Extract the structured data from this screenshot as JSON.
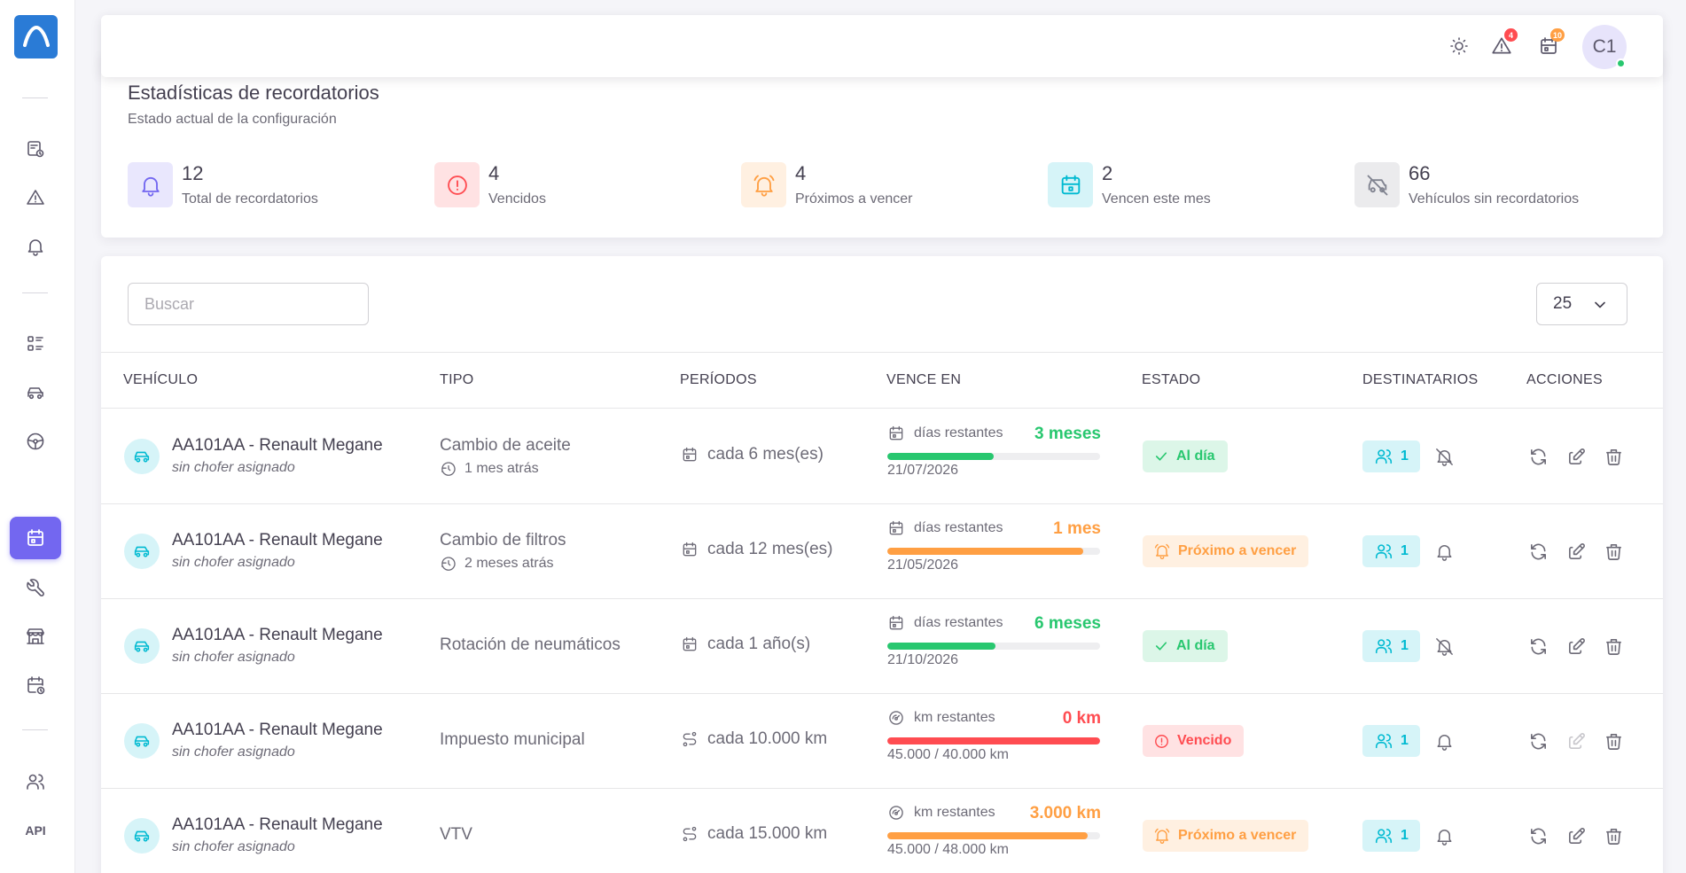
{
  "sidebar": {
    "logo": "app-logo",
    "items": [
      {
        "name": "sidebar-item-vehicle-docs",
        "icon": "file-clock-icon"
      },
      {
        "name": "sidebar-item-alerts",
        "icon": "warning-icon"
      },
      {
        "name": "sidebar-item-notifications",
        "icon": "bell-icon"
      },
      {
        "name": "sidebar-item-list",
        "icon": "list-details-icon"
      },
      {
        "name": "sidebar-item-vehicles",
        "icon": "car-icon"
      },
      {
        "name": "sidebar-item-drivers",
        "icon": "steering-wheel-icon"
      },
      {
        "name": "sidebar-item-reminders",
        "icon": "calendar-icon",
        "active": true
      },
      {
        "name": "sidebar-item-maintenance",
        "icon": "wrench-icon"
      },
      {
        "name": "sidebar-item-workshops",
        "icon": "building-store-icon"
      },
      {
        "name": "sidebar-item-calendar-schedule",
        "icon": "calendar-time-icon"
      },
      {
        "name": "sidebar-item-users",
        "icon": "users-icon"
      }
    ],
    "api_label": "API"
  },
  "navbar": {
    "alerts_count": "4",
    "calendar_count": "10",
    "avatar_initials": "C1",
    "colors": {
      "alerts_badge": "#ff4c51",
      "calendar_badge": "#ff9f43",
      "online": "#28c76f"
    }
  },
  "stats": {
    "title": "Estadísticas de recordatorios",
    "subtitle": "Estado actual de la configuración",
    "items": [
      {
        "value": "12",
        "label": "Total de recordatorios",
        "icon": "bell-icon",
        "color": "#7367f0"
      },
      {
        "value": "4",
        "label": "Vencidos",
        "icon": "alert-circle-icon",
        "color": "#ff4c51"
      },
      {
        "value": "4",
        "label": "Próximos a vencer",
        "icon": "bell-ringing-icon",
        "color": "#ff9f43"
      },
      {
        "value": "2",
        "label": "Vencen este mes",
        "icon": "calendar-event-icon",
        "color": "#00bad1"
      },
      {
        "value": "66",
        "label": "Vehículos sin recordatorios",
        "icon": "car-off-icon",
        "color": "#808390"
      }
    ]
  },
  "table": {
    "search_placeholder": "Buscar",
    "page_size": "25",
    "columns": [
      "VEHÍCULO",
      "TIPO",
      "PERÍODOS",
      "VENCE EN",
      "ESTADO",
      "DESTINATARIOS",
      "ACCIONES"
    ],
    "rows": [
      {
        "vehicle": "AA101AA - Renault Megane",
        "driver": "sin chofer asignado",
        "type": "Cambio de aceite",
        "type_sub": "1 mes atrás",
        "period_icon": "calendar-icon",
        "period": "cada 6 mes(es)",
        "due_icon": "calendar-icon",
        "due_label": "días restantes",
        "due_amount": "3 meses",
        "due_color": "#28c76f",
        "progress": 0.5,
        "due_detail": "21/07/2026",
        "status": "Al día",
        "status_kind": "ok",
        "recipients": "1",
        "notify": "muted",
        "edit_enabled": true
      },
      {
        "vehicle": "AA101AA - Renault Megane",
        "driver": "sin chofer asignado",
        "type": "Cambio de filtros",
        "type_sub": "2 meses atrás",
        "period_icon": "calendar-icon",
        "period": "cada 12 mes(es)",
        "due_icon": "calendar-icon",
        "due_label": "días restantes",
        "due_amount": "1 mes",
        "due_color": "#ff9f43",
        "progress": 0.92,
        "due_detail": "21/05/2026",
        "status": "Próximo a vencer",
        "status_kind": "warning",
        "recipients": "1",
        "notify": "on",
        "edit_enabled": true
      },
      {
        "vehicle": "AA101AA - Renault Megane",
        "driver": "sin chofer asignado",
        "type": "Rotación de neumáticos",
        "type_sub": "",
        "period_icon": "calendar-icon",
        "period": "cada 1 año(s)",
        "due_icon": "calendar-icon",
        "due_label": "días restantes",
        "due_amount": "6 meses",
        "due_color": "#28c76f",
        "progress": 0.51,
        "due_detail": "21/10/2026",
        "status": "Al día",
        "status_kind": "ok",
        "recipients": "1",
        "notify": "muted",
        "edit_enabled": true
      },
      {
        "vehicle": "AA101AA - Renault Megane",
        "driver": "sin chofer asignado",
        "type": "Impuesto municipal",
        "type_sub": "",
        "period_icon": "route-icon",
        "period": "cada 10.000 km",
        "due_icon": "gauge-icon",
        "due_label": "km restantes",
        "due_amount": "0 km",
        "due_color": "#ff4c51",
        "progress": 1.0,
        "due_detail": "45.000 / 40.000 km",
        "status": "Vencido",
        "status_kind": "danger",
        "recipients": "1",
        "notify": "on",
        "edit_enabled": false
      },
      {
        "vehicle": "AA101AA - Renault Megane",
        "driver": "sin chofer asignado",
        "type": "VTV",
        "type_sub": "",
        "period_icon": "route-icon",
        "period": "cada 15.000 km",
        "due_icon": "gauge-icon",
        "due_label": "km restantes",
        "due_amount": "3.000 km",
        "due_color": "#ff9f43",
        "progress": 0.94,
        "due_detail": "45.000 / 48.000 km",
        "status": "Próximo a vencer",
        "status_kind": "warning",
        "recipients": "1",
        "notify": "on",
        "edit_enabled": true
      }
    ]
  }
}
